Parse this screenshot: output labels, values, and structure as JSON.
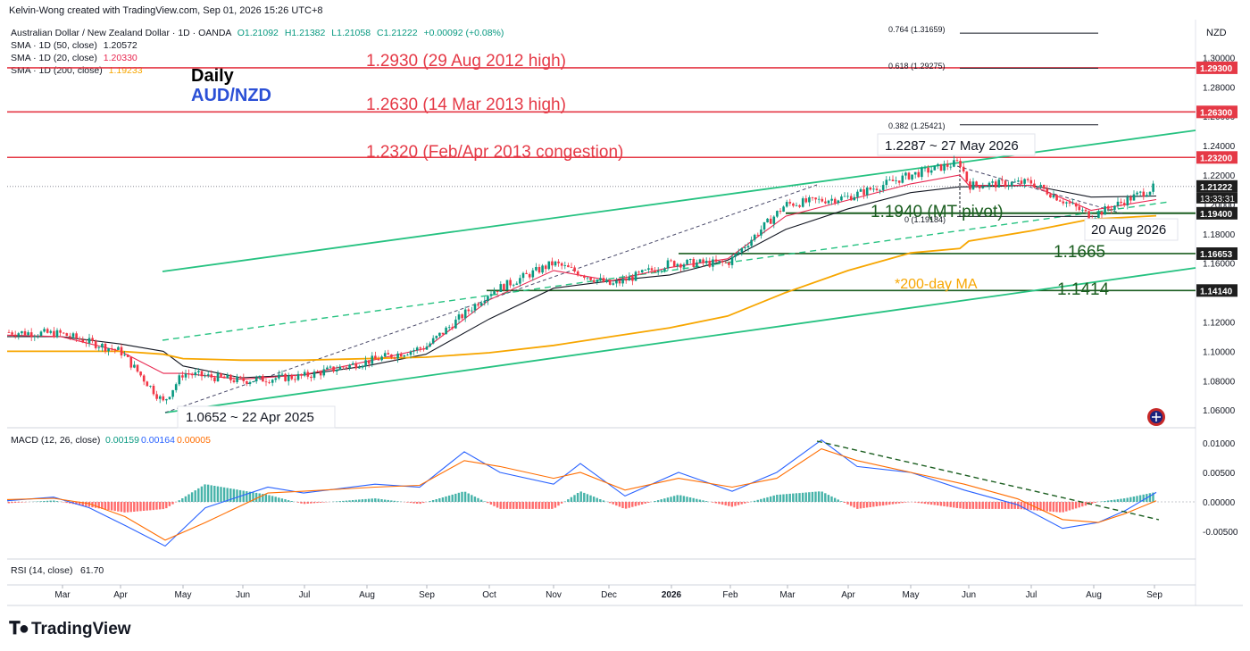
{
  "header": {
    "attribution": "Kelvin-Wong created with TradingView.com, Sep 01, 2026 15:26 UTC+8",
    "symbol_line": "Australian Dollar / New Zealand Dollar · 1D · OANDA",
    "ohlc": {
      "o": "O1.21092",
      "h": "H1.21382",
      "l": "L1.21058",
      "c": "C1.21222",
      "chg": "+0.00092 (+0.08%)"
    },
    "sma50": {
      "label": "SMA · 1D (50, close)",
      "value": "1.20572"
    },
    "sma20": {
      "label": "SMA · 1D (20, close)",
      "value": "1.20330"
    },
    "sma200": {
      "label": "SMA · 1D (200, close)",
      "value": "1.19233"
    },
    "currency": "NZD"
  },
  "titles": {
    "daily": "Daily",
    "pair": "AUD/NZD"
  },
  "annotations": {
    "l1": "1.2930 (29 Aug 2012 high)",
    "l2": "1.2630 (14 Mar 2013 high)",
    "l3": "1.2320 (Feb/Apr 2013 congestion)",
    "pivot": "1.1940 (MT pivot)",
    "s1": "1.1665",
    "s2": "1.1414",
    "ma200": "*200-day MA",
    "peak": "1.2287 ~ 27 May 2026",
    "low": "1.0652 ~ 22 Apr 2025",
    "recent_low": "20 Aug 2026",
    "fib0": "0 (1.19184)",
    "fib382": "0.382 (1.25421)",
    "fib618": "0.618 (1.29275)",
    "fib764": "0.764 (1.31659)"
  },
  "price_axis": {
    "ticks": [
      "1.30000",
      "1.28000",
      "1.26000",
      "1.24000",
      "1.22000",
      "1.20000",
      "1.18000",
      "1.16000",
      "1.14000",
      "1.12000",
      "1.10000",
      "1.08000",
      "1.06000"
    ],
    "tags": [
      {
        "value": 1.293,
        "text": "1.29300",
        "color": "#e53946"
      },
      {
        "value": 1.263,
        "text": "1.26300",
        "color": "#e53946"
      },
      {
        "value": 1.232,
        "text": "1.23200",
        "color": "#e53946"
      },
      {
        "value": 1.21222,
        "text": "1.21222",
        "color": "#1e1e1e"
      },
      {
        "value": 1.194,
        "text": "1.19400",
        "color": "#1e1e1e"
      },
      {
        "value": 1.16653,
        "text": "1.16653",
        "color": "#1e1e1e"
      },
      {
        "value": 1.1414,
        "text": "1.14140",
        "color": "#1e1e1e"
      }
    ],
    "countdown": "13:33:31"
  },
  "macd": {
    "label": "MACD (12, 26, close)",
    "v1": "0.00159",
    "v2": "0.00164",
    "v3": "0.00005",
    "ticks": [
      "0.01000",
      "0.00500",
      "0.00000",
      "-0.00500"
    ]
  },
  "rsi": {
    "label": "RSI (14, close)",
    "value": "61.70"
  },
  "time_axis": [
    "Mar",
    "Apr",
    "May",
    "Jun",
    "Jul",
    "Aug",
    "Sep",
    "Oct",
    "Nov",
    "Dec",
    "2026",
    "Feb",
    "Mar",
    "Apr",
    "May",
    "Jun",
    "Jul",
    "Aug",
    "Sep"
  ],
  "footer": {
    "brand": "TradingView"
  },
  "chart_data": {
    "type": "line",
    "title": "Australian Dollar / New Zealand Dollar · 1D · OANDA",
    "x": [
      "Feb 2025",
      "Mar 2025",
      "Apr 2025",
      "22 Apr 2025",
      "May 2025",
      "Jun 2025",
      "Jul 2025",
      "Aug 2025",
      "Sep 2025",
      "Oct 2025",
      "Nov 2025",
      "Dec 2025",
      "Jan 2026",
      "Feb 2026",
      "Mar 2026",
      "Apr 2026",
      "May 2026",
      "27 May 2026",
      "Jun 2026",
      "Jul 2026",
      "20 Aug 2026",
      "Sep 2026"
    ],
    "series": [
      {
        "name": "AUD/NZD",
        "values": [
          1.113,
          1.112,
          1.1,
          1.0652,
          1.085,
          1.08,
          1.083,
          1.093,
          1.103,
          1.14,
          1.16,
          1.145,
          1.16,
          1.16,
          1.2,
          1.205,
          1.22,
          1.2287,
          1.213,
          1.215,
          1.1918,
          1.2122
        ]
      },
      {
        "name": "SMA · 1D (50, close)",
        "values": [
          1.11,
          1.11,
          1.105,
          1.1,
          1.09,
          1.082,
          1.084,
          1.09,
          1.098,
          1.122,
          1.143,
          1.148,
          1.152,
          1.162,
          1.183,
          1.197,
          1.208,
          1.212,
          1.212,
          1.213,
          1.205,
          1.2057
        ]
      },
      {
        "name": "SMA · 1D (20, close)",
        "values": [
          1.111,
          1.11,
          1.1,
          1.085,
          1.085,
          1.081,
          1.084,
          1.093,
          1.102,
          1.135,
          1.155,
          1.148,
          1.157,
          1.163,
          1.192,
          1.203,
          1.214,
          1.22,
          1.213,
          1.213,
          1.196,
          1.2033
        ]
      },
      {
        "name": "SMA · 1D (200, close)",
        "values": [
          1.1,
          1.1,
          1.1,
          1.098,
          1.095,
          1.094,
          1.094,
          1.095,
          1.096,
          1.099,
          1.104,
          1.11,
          1.116,
          1.124,
          1.14,
          1.155,
          1.167,
          1.17,
          1.175,
          1.182,
          1.19,
          1.1923
        ]
      }
    ],
    "levels": [
      1.293,
      1.263,
      1.232,
      1.194,
      1.16653,
      1.1414
    ],
    "ylim": [
      1.055,
      1.315
    ],
    "ylabel": "NZD",
    "grid": false,
    "legend": "top-left"
  }
}
